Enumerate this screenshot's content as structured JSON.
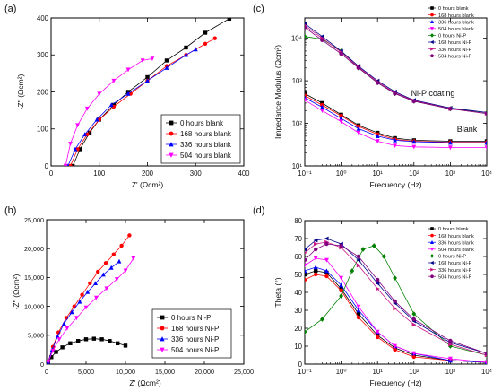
{
  "figure": {
    "panels": [
      {
        "label": "(a)",
        "type": "line",
        "xlabel": "Z' (Ωcm²)",
        "ylabel": "-Z'' (Ωcm²)",
        "xlim": [
          0,
          400
        ],
        "ylim": [
          0,
          400
        ],
        "xticks": [
          "0",
          "100",
          "200",
          "300",
          "400"
        ],
        "yticks": [
          "0",
          "100",
          "200",
          "300",
          "400"
        ],
        "legend_position": "bottom-right",
        "series": [
          {
            "name": "0 hours blank",
            "color": "#000000",
            "marker": "square",
            "x": [
              45,
              60,
              80,
              100,
              130,
              160,
              200,
              240,
              280,
              320,
              370
            ],
            "y": [
              0,
              45,
              90,
              125,
              165,
              200,
              240,
              285,
              320,
              360,
              398
            ]
          },
          {
            "name": "168  hours blank",
            "color": "#ff0000",
            "marker": "circle",
            "x": [
              40,
              55,
              75,
              100,
              130,
              165,
              200,
              240,
              280,
              320,
              340
            ],
            "y": [
              0,
              45,
              85,
              125,
              160,
              195,
              230,
              270,
              300,
              330,
              345
            ]
          },
          {
            "name": "336  hours blank",
            "color": "#0000ff",
            "marker": "triangle-up",
            "x": [
              35,
              50,
              70,
              95,
              125,
              160,
              200,
              240,
              280,
              300
            ],
            "y": [
              0,
              45,
              85,
              125,
              165,
              195,
              230,
              265,
              300,
              315
            ]
          },
          {
            "name": "504  hours blank",
            "color": "#ff00ff",
            "marker": "triangle-down",
            "x": [
              30,
              40,
              55,
              75,
              100,
              130,
              160,
              190,
              210
            ],
            "y": [
              0,
              60,
              110,
              155,
              195,
              230,
              260,
              285,
              290
            ]
          }
        ]
      },
      {
        "label": "(b)",
        "type": "line",
        "xlabel": "Z' (Ωcm²)",
        "ylabel": "-Z'' (Ωcm²)",
        "xlim": [
          0,
          25000
        ],
        "ylim": [
          0,
          25000
        ],
        "xticks": [
          "0",
          "5,000",
          "10,000",
          "15,000",
          "20,000",
          "25,000"
        ],
        "yticks": [
          "0",
          "5,000",
          "10,000",
          "15,000",
          "20,000",
          "25,000"
        ],
        "legend_position": "bottom-right",
        "series": [
          {
            "name": "0 hours Ni-P",
            "color": "#000000",
            "marker": "square",
            "x": [
              200,
              600,
              1200,
              2000,
              3000,
              4000,
              5000,
              6000,
              7000,
              8000,
              9000,
              10000
            ],
            "y": [
              300,
              1200,
              2100,
              2900,
              3600,
              4000,
              4300,
              4400,
              4300,
              4000,
              3600,
              3200
            ]
          },
          {
            "name": "168 hours Ni-P",
            "color": "#ff0000",
            "marker": "circle",
            "x": [
              200,
              800,
              1500,
              2500,
              3500,
              4500,
              5500,
              6500,
              7500,
              8500,
              9500,
              10500
            ],
            "y": [
              500,
              3000,
              5500,
              8000,
              10000,
              12000,
              14000,
              16000,
              17500,
              19000,
              20500,
              22300
            ]
          },
          {
            "name": "336 hours Ni-P",
            "color": "#0000ff",
            "marker": "triangle-up",
            "x": [
              200,
              700,
              1400,
              2200,
              3200,
              4200,
              5200,
              6200,
              7200,
              8200,
              9200
            ],
            "y": [
              400,
              2500,
              4800,
              7000,
              9000,
              10800,
              12500,
              14000,
              15500,
              16700,
              17800
            ]
          },
          {
            "name": "504 hours Ni-P",
            "color": "#ff00ff",
            "marker": "triangle-down",
            "x": [
              200,
              800,
              1600,
              2600,
              3800,
              5000,
              6300,
              7600,
              8900,
              10000,
              11000
            ],
            "y": [
              400,
              2300,
              4300,
              6200,
              8000,
              9800,
              11500,
              13100,
              14700,
              16200,
              18300
            ]
          }
        ]
      },
      {
        "label": "(c)",
        "type": "line",
        "xlabel": "Frecuency (Hz)",
        "ylabel": "Impedance Modulus (Ωcm²)",
        "xscale": "log",
        "yscale": "log",
        "xlim": [
          0.1,
          10000
        ],
        "ylim": [
          10,
          30000
        ],
        "xticks": [
          "10⁻¹",
          "10⁰",
          "10¹",
          "10²",
          "10³",
          "10⁴"
        ],
        "yticks": [
          "10¹",
          "10²",
          "10³",
          "10⁴"
        ],
        "annotations": [
          "Ni-P coating",
          "Blank"
        ],
        "legend_position": "top-right",
        "series": [
          {
            "name": "0 hours blank",
            "color": "#000000",
            "marker": "square",
            "x": [
              0.1,
              0.3,
              1,
              3,
              10,
              30,
              100,
              1000,
              10000
            ],
            "y": [
              500,
              300,
              160,
              90,
              60,
              45,
              40,
              38,
              38
            ]
          },
          {
            "name": "168 hours blank",
            "color": "#ff0000",
            "marker": "circle",
            "x": [
              0.1,
              0.3,
              1,
              3,
              10,
              30,
              100,
              1000,
              10000
            ],
            "y": [
              450,
              270,
              150,
              85,
              55,
              42,
              38,
              36,
              36
            ]
          },
          {
            "name": "336 hours blank",
            "color": "#0000ff",
            "marker": "triangle-up",
            "x": [
              0.1,
              0.3,
              1,
              3,
              10,
              30,
              100,
              1000,
              10000
            ],
            "y": [
              400,
              240,
              130,
              75,
              50,
              40,
              37,
              35,
              35
            ]
          },
          {
            "name": "504 hours blank",
            "color": "#ff00ff",
            "marker": "triangle-down",
            "x": [
              0.1,
              0.3,
              1,
              3,
              10,
              30,
              100,
              1000,
              10000
            ],
            "y": [
              350,
              200,
              110,
              60,
              38,
              30,
              28,
              27,
              27
            ]
          },
          {
            "name": "0 hours Ni-P",
            "color": "#008000",
            "marker": "diamond",
            "x": [
              0.1,
              0.3,
              1,
              3,
              10,
              30,
              100,
              1000,
              10000
            ],
            "y": [
              11000,
              9500,
              5000,
              2000,
              900,
              500,
              330,
              220,
              180
            ]
          },
          {
            "name": "168 hours Ni-P",
            "color": "#00008b",
            "marker": "triangle-left",
            "x": [
              0.1,
              0.3,
              1,
              3,
              10,
              30,
              100,
              1000,
              10000
            ],
            "y": [
              22000,
              11000,
              5000,
              2200,
              1000,
              550,
              350,
              230,
              180
            ]
          },
          {
            "name": "336 hours Ni-P",
            "color": "#c71585",
            "marker": "triangle-right",
            "x": [
              0.1,
              0.3,
              1,
              3,
              10,
              30,
              100,
              1000,
              10000
            ],
            "y": [
              20000,
              10000,
              4700,
              2100,
              950,
              520,
              340,
              220,
              170
            ]
          },
          {
            "name": "504 hours Ni-P",
            "color": "#800080",
            "marker": "circle",
            "x": [
              0.1,
              0.3,
              1,
              3,
              10,
              30,
              100,
              1000,
              10000
            ],
            "y": [
              18000,
              9000,
              4300,
              2000,
              900,
              500,
              330,
              220,
              170
            ]
          }
        ]
      },
      {
        "label": "(d)",
        "type": "line",
        "xlabel": "Frecuency (Hz)",
        "ylabel": "Theta (°)",
        "xscale": "log",
        "xlim": [
          0.1,
          10000
        ],
        "ylim": [
          0,
          80
        ],
        "xticks": [
          "10⁻¹",
          "10⁰",
          "10¹",
          "10²",
          "10³",
          "10⁴"
        ],
        "yticks": [
          "0",
          "10",
          "20",
          "30",
          "40",
          "50",
          "60",
          "70",
          "80"
        ],
        "legend_position": "top-right",
        "series": [
          {
            "name": "0 hours blank",
            "color": "#000000",
            "marker": "square",
            "x": [
              0.1,
              0.2,
              0.4,
              1,
              3,
              10,
              30,
              100,
              1000,
              10000
            ],
            "y": [
              50,
              52,
              51,
              42,
              28,
              16,
              9,
              5,
              2,
              1
            ]
          },
          {
            "name": "168 hours blank",
            "color": "#ff0000",
            "marker": "circle",
            "x": [
              0.1,
              0.2,
              0.4,
              1,
              3,
              10,
              30,
              100,
              1000,
              10000
            ],
            "y": [
              47,
              50,
              49,
              41,
              26,
              15,
              8,
              4,
              2,
              1
            ]
          },
          {
            "name": "336 hours blank",
            "color": "#0000ff",
            "marker": "triangle-up",
            "x": [
              0.1,
              0.2,
              0.4,
              1,
              3,
              10,
              30,
              100,
              1000,
              10000
            ],
            "y": [
              52,
              54,
              52,
              44,
              30,
              18,
              10,
              6,
              2,
              1
            ]
          },
          {
            "name": "504 hours blank",
            "color": "#ff00ff",
            "marker": "triangle-down",
            "x": [
              0.1,
              0.2,
              0.4,
              1,
              3,
              10,
              30,
              100,
              1000,
              10000
            ],
            "y": [
              55,
              59,
              58,
              48,
              32,
              18,
              10,
              6,
              3,
              1
            ]
          },
          {
            "name": "0 hours Ni-P",
            "color": "#008000",
            "marker": "diamond",
            "x": [
              0.1,
              0.3,
              1,
              2,
              4,
              8,
              15,
              30,
              100,
              1000,
              10000
            ],
            "y": [
              18,
              25,
              38,
              52,
              64,
              66,
              60,
              48,
              28,
              10,
              5
            ]
          },
          {
            "name": "168 hours Ni-P",
            "color": "#00008b",
            "marker": "triangle-left",
            "x": [
              0.1,
              0.2,
              0.4,
              1,
              3,
              10,
              30,
              100,
              1000,
              10000
            ],
            "y": [
              64,
              69,
              70,
              67,
              58,
              45,
              34,
              24,
              12,
              6
            ]
          },
          {
            "name": "336 hours Ni-P",
            "color": "#c71585",
            "marker": "triangle-right",
            "x": [
              0.1,
              0.2,
              0.4,
              1,
              3,
              10,
              30,
              100,
              1000,
              10000
            ],
            "y": [
              62,
              67,
              68,
              65,
              55,
              42,
              31,
              22,
              11,
              5
            ]
          },
          {
            "name": "504 hours Ni-P",
            "color": "#800080",
            "marker": "circle",
            "x": [
              0.1,
              0.2,
              0.4,
              1,
              3,
              10,
              30,
              100,
              1000,
              10000
            ],
            "y": [
              58,
              64,
              67,
              66,
              60,
              47,
              35,
              25,
              13,
              6
            ]
          }
        ]
      }
    ]
  }
}
